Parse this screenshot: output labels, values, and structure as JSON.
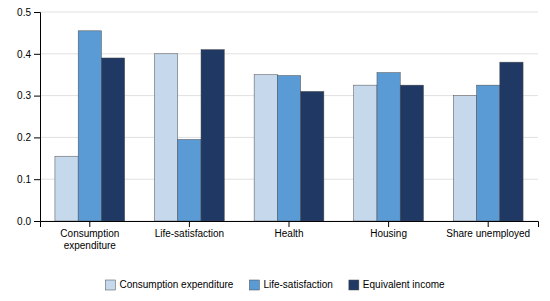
{
  "chart_data": {
    "type": "bar",
    "categories": [
      "Consumption\nexpenditure",
      "Life-satisfaction",
      "Health",
      "Housing",
      "Share unemployed"
    ],
    "series": [
      {
        "name": "Consumption expenditure",
        "color": "#c5d8ec",
        "values": [
          0.155,
          0.4,
          0.35,
          0.325,
          0.3
        ]
      },
      {
        "name": "Life-satisfaction",
        "color": "#5b9bd5",
        "values": [
          0.455,
          0.195,
          0.348,
          0.355,
          0.325
        ]
      },
      {
        "name": "Equivalent income",
        "color": "#203864",
        "values": [
          0.39,
          0.41,
          0.31,
          0.325,
          0.38
        ]
      }
    ],
    "ylim": [
      0.0,
      0.5
    ],
    "yticks": [
      {
        "value": 0.0,
        "label": "0.0"
      },
      0.1,
      0.2,
      0.3,
      0.4,
      0.5
    ],
    "grid": true,
    "legend": "bottom"
  }
}
